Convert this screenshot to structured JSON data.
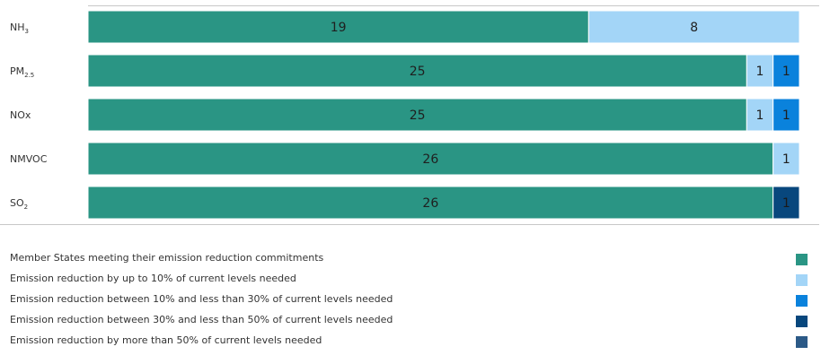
{
  "chart_data": {
    "type": "bar",
    "orientation": "horizontal",
    "stacked": true,
    "categories": [
      {
        "label": "NH",
        "sub": "3",
        "sub_type": "sub"
      },
      {
        "label": "PM",
        "sub": "2.5",
        "sub_type": "sub"
      },
      {
        "label": "NOx",
        "sub": "",
        "sub_type": ""
      },
      {
        "label": "NMVOC",
        "sub": "",
        "sub_type": ""
      },
      {
        "label": "SO",
        "sub": "2",
        "sub_type": "sub"
      }
    ],
    "series": [
      {
        "name": "Member States meeting their emission reduction commitments",
        "color": "#2a9584",
        "values": [
          19,
          25,
          25,
          26,
          26
        ]
      },
      {
        "name": "Emission reduction by up to 10% of current levels needed",
        "color": "#a3d5f7",
        "values": [
          8,
          1,
          1,
          1,
          0
        ]
      },
      {
        "name": "Emission reduction between 10% and less than 30% of current levels needed",
        "color": "#0a82dc",
        "values": [
          0,
          1,
          1,
          0,
          0
        ]
      },
      {
        "name": "Emission reduction between 30% and less than 50% of current levels needed",
        "color": "#08477d",
        "values": [
          0,
          0,
          0,
          0,
          1
        ]
      },
      {
        "name": "Emission reduction by more than 50% of current levels needed",
        "color": "#2c5a87",
        "values": [
          0,
          0,
          0,
          0,
          0
        ]
      }
    ],
    "xlim": [
      0,
      27
    ],
    "grid": false,
    "legend_position": "bottom",
    "data_labels": true
  }
}
